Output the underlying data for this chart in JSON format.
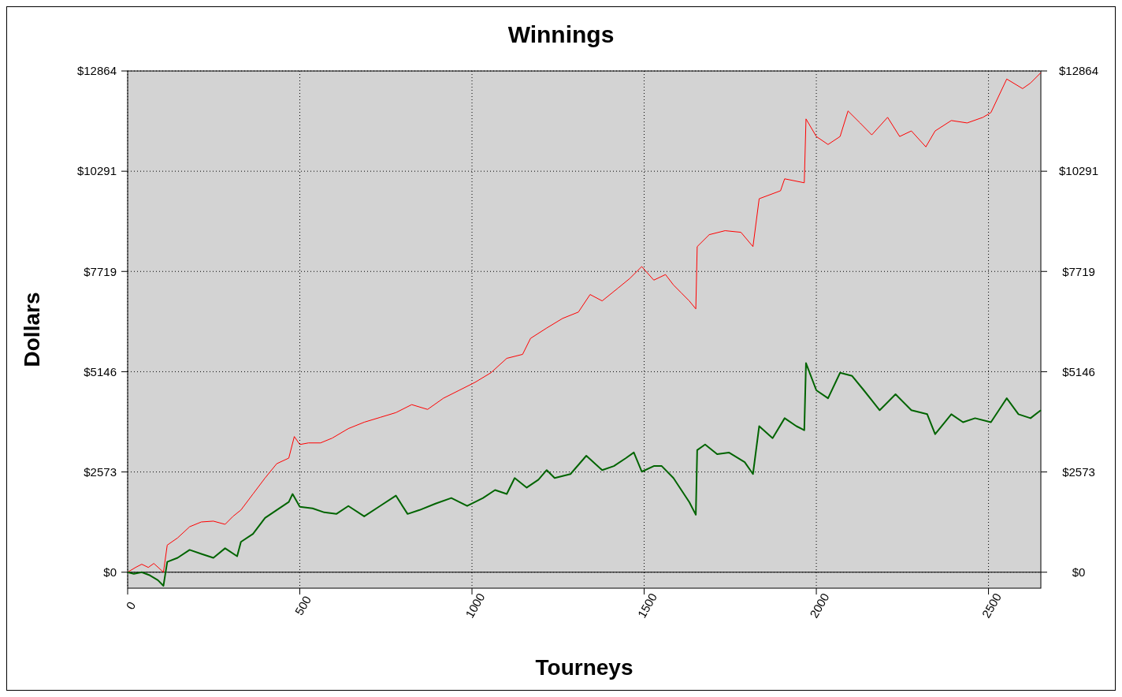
{
  "chart_data": {
    "type": "line",
    "title": "Winnings",
    "xlabel": "Tourneys",
    "ylabel": "Dollars",
    "xlim": [
      0,
      2652
    ],
    "xticks": [
      0,
      500,
      1000,
      1500,
      2000,
      2500
    ],
    "ylim": [
      -410,
      12864
    ],
    "yticks": [
      {
        "value": 0,
        "label": "$0"
      },
      {
        "value": 2573,
        "label": "$2573"
      },
      {
        "value": 5146,
        "label": "$5146"
      },
      {
        "value": 7719,
        "label": "$7719"
      },
      {
        "value": 10291,
        "label": "$10291"
      },
      {
        "value": 12864,
        "label": "$12864"
      }
    ],
    "y2lim": [
      -410,
      12864
    ],
    "y2ticks": [
      {
        "value": 0,
        "label": "$0"
      },
      {
        "value": 2573,
        "label": "$2573"
      },
      {
        "value": 5146,
        "label": "$5146"
      },
      {
        "value": 7719,
        "label": "$7719"
      },
      {
        "value": 10291,
        "label": "$10291"
      },
      {
        "value": 12864,
        "label": "$12864"
      }
    ],
    "grid": true,
    "line_style": "solid",
    "ref_lines": [
      {
        "axis": "y",
        "value": 0,
        "color": "#000000",
        "line_style": "solid"
      }
    ],
    "series": [
      {
        "color": "#ff0000",
        "x": [
          0,
          23,
          41,
          60,
          76,
          104,
          115,
          145,
          180,
          214,
          249,
          283,
          306,
          329,
          364,
          399,
          433,
          468,
          484,
          500,
          525,
          560,
          594,
          641,
          687,
          733,
          779,
          825,
          871,
          917,
          963,
          1009,
          1055,
          1101,
          1147,
          1170,
          1217,
          1263,
          1309,
          1343,
          1378,
          1424,
          1458,
          1493,
          1528,
          1562,
          1585,
          1608,
          1631,
          1650,
          1654,
          1689,
          1735,
          1781,
          1816,
          1834,
          1896,
          1908,
          1965,
          1970,
          2000,
          2034,
          2069,
          2092,
          2127,
          2161,
          2207,
          2242,
          2276,
          2318,
          2345,
          2392,
          2438,
          2484,
          2507,
          2553,
          2599,
          2622,
          2652
        ],
        "values": [
          0,
          123,
          205,
          123,
          225,
          0,
          696,
          880,
          1167,
          1290,
          1311,
          1229,
          1434,
          1597,
          2007,
          2417,
          2785,
          2929,
          3482,
          3277,
          3318,
          3318,
          3441,
          3686,
          3850,
          3973,
          4096,
          4301,
          4178,
          4465,
          4669,
          4874,
          5120,
          5489,
          5591,
          6001,
          6267,
          6513,
          6676,
          7127,
          6963,
          7291,
          7537,
          7844,
          7496,
          7639,
          7373,
          7168,
          6963,
          6758,
          8356,
          8663,
          8765,
          8724,
          8356,
          9585,
          9789,
          10096,
          9994,
          11633,
          11182,
          10977,
          11182,
          11837,
          11530,
          11223,
          11674,
          11182,
          11325,
          10916,
          11325,
          11592,
          11530,
          11674,
          11796,
          12657,
          12411,
          12554,
          12820
        ]
      },
      {
        "color": "#006400",
        "x": [
          0,
          18,
          41,
          65,
          88,
          104,
          115,
          145,
          180,
          214,
          249,
          283,
          318,
          329,
          364,
          399,
          433,
          468,
          479,
          500,
          537,
          571,
          606,
          641,
          687,
          733,
          779,
          813,
          848,
          894,
          940,
          986,
          1032,
          1067,
          1101,
          1124,
          1159,
          1193,
          1217,
          1240,
          1286,
          1332,
          1378,
          1412,
          1447,
          1470,
          1493,
          1528,
          1551,
          1585,
          1631,
          1650,
          1654,
          1677,
          1712,
          1746,
          1792,
          1816,
          1834,
          1873,
          1908,
          1942,
          1965,
          1970,
          2000,
          2034,
          2069,
          2104,
          2138,
          2184,
          2230,
          2276,
          2322,
          2345,
          2392,
          2426,
          2461,
          2507,
          2553,
          2587,
          2622,
          2652
        ],
        "values": [
          0,
          -41,
          0,
          -82,
          -205,
          -348,
          266,
          369,
          573,
          471,
          369,
          614,
          410,
          778,
          983,
          1393,
          1597,
          1802,
          2007,
          1679,
          1638,
          1536,
          1495,
          1700,
          1434,
          1700,
          1966,
          1495,
          1597,
          1761,
          1905,
          1700,
          1905,
          2109,
          2007,
          2417,
          2171,
          2376,
          2621,
          2417,
          2519,
          2990,
          2621,
          2724,
          2929,
          3072,
          2580,
          2724,
          2724,
          2417,
          1802,
          1475,
          3133,
          3277,
          3031,
          3072,
          2826,
          2519,
          3748,
          3441,
          3953,
          3748,
          3645,
          5366,
          4669,
          4465,
          5120,
          5038,
          4669,
          4157,
          4567,
          4157,
          4055,
          3543,
          4055,
          3850,
          3953,
          3850,
          4465,
          4055,
          3953,
          4157
        ]
      }
    ]
  }
}
